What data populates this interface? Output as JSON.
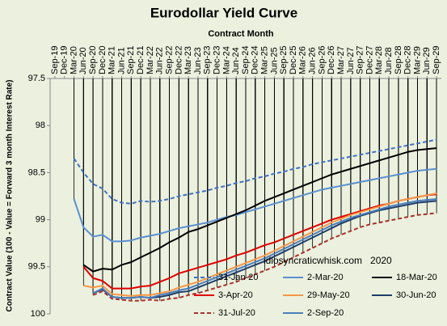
{
  "chart_data": {
    "type": "line",
    "title": "Eurodollar Yield Curve",
    "x_label": "Contract Month",
    "y_label": "Contract Value (100 - Value = Forward 3 month Interest Rate)",
    "annotation": "idiosyncraticwhisk.com   2020",
    "categories": [
      "Sep-19",
      "Dec-19",
      "Mar-20",
      "Jun-20",
      "Sep-20",
      "Dec-20",
      "Mar-21",
      "Jun-21",
      "Sep-21",
      "Dec-21",
      "Mar-22",
      "Jun-22",
      "Sep-22",
      "Dec-22",
      "Mar-23",
      "Jun-23",
      "Sep-23",
      "Dec-23",
      "Mar-24",
      "Jun-24",
      "Sep-24",
      "Dec-24",
      "Mar-25",
      "Jun-25",
      "Sep-25",
      "Dec-25",
      "Mar-26",
      "Jun-26",
      "Sep-26",
      "Dec-26",
      "Mar-27",
      "Jun-27",
      "Sep-27",
      "Dec-27",
      "Mar-28",
      "Jun-28",
      "Sep-28",
      "Dec-28",
      "Mar-29",
      "Jun-29",
      "Sep-29"
    ],
    "ylim": [
      100,
      97.5
    ],
    "yticks": [
      97.5,
      98,
      98.5,
      99,
      99.5,
      100
    ],
    "y_inverted": true,
    "category_axis_position": "top",
    "drop_lines": true,
    "grid": false,
    "legend_location": "lower right",
    "background": "#ebf1de",
    "series": [
      {
        "name": "31-Jan-20",
        "color": "#4472c4",
        "line_style": "dashed",
        "values": [
          null,
          null,
          98.35,
          98.5,
          98.62,
          98.67,
          98.78,
          98.82,
          98.83,
          98.8,
          98.81,
          98.8,
          98.78,
          98.75,
          98.73,
          98.71,
          98.69,
          98.66,
          98.64,
          98.61,
          98.59,
          98.56,
          98.54,
          98.51,
          98.49,
          98.46,
          98.44,
          98.41,
          98.39,
          98.37,
          98.35,
          98.33,
          98.31,
          98.29,
          98.27,
          98.25,
          98.23,
          98.21,
          98.19,
          98.17,
          98.15
        ]
      },
      {
        "name": "2-Mar-20",
        "color": "#5b8fd0",
        "line_style": "solid",
        "values": [
          null,
          null,
          98.78,
          99.08,
          99.18,
          99.16,
          99.23,
          99.23,
          99.22,
          99.19,
          99.17,
          99.15,
          99.12,
          99.09,
          99.07,
          99.05,
          99.03,
          99.0,
          98.97,
          98.95,
          98.92,
          98.89,
          98.86,
          98.83,
          98.8,
          98.77,
          98.74,
          98.71,
          98.68,
          98.66,
          98.64,
          98.62,
          98.6,
          98.58,
          98.56,
          98.54,
          98.52,
          98.5,
          98.48,
          98.47,
          98.46
        ]
      },
      {
        "name": "18-Mar-20",
        "color": "#000000",
        "line_style": "solid",
        "values": [
          null,
          null,
          null,
          99.48,
          99.55,
          99.52,
          99.53,
          99.48,
          99.45,
          99.4,
          99.35,
          99.3,
          99.24,
          99.19,
          99.13,
          99.1,
          99.06,
          99.02,
          98.98,
          98.94,
          98.9,
          98.85,
          98.8,
          98.76,
          98.72,
          98.68,
          98.64,
          98.6,
          98.56,
          98.52,
          98.49,
          98.46,
          98.43,
          98.4,
          98.37,
          98.34,
          98.31,
          98.28,
          98.26,
          98.25,
          98.24
        ]
      },
      {
        "name": "3-Apr-20",
        "color": "#e00000",
        "line_style": "solid",
        "values": [
          null,
          null,
          null,
          99.5,
          99.62,
          99.65,
          99.73,
          99.73,
          99.73,
          99.71,
          99.7,
          99.66,
          99.62,
          99.57,
          99.54,
          99.51,
          99.48,
          99.45,
          99.42,
          99.38,
          99.35,
          99.31,
          99.27,
          99.24,
          99.2,
          99.16,
          99.12,
          99.08,
          99.04,
          99.0,
          98.97,
          98.94,
          98.91,
          98.88,
          98.85,
          98.83,
          98.8,
          98.78,
          98.76,
          98.74,
          98.73
        ]
      },
      {
        "name": "29-May-20",
        "color": "#f79646",
        "line_style": "solid",
        "values": [
          null,
          null,
          null,
          99.7,
          99.72,
          99.7,
          99.79,
          99.8,
          99.81,
          99.8,
          99.8,
          99.78,
          99.76,
          99.72,
          99.69,
          99.66,
          99.62,
          99.58,
          99.54,
          99.5,
          99.46,
          99.42,
          99.38,
          99.33,
          99.28,
          99.23,
          99.18,
          99.13,
          99.08,
          99.03,
          98.99,
          98.95,
          98.92,
          98.89,
          98.86,
          98.83,
          98.8,
          98.78,
          98.76,
          98.74,
          98.72
        ]
      },
      {
        "name": "30-Jun-20",
        "color": "#1f3d6b",
        "line_style": "solid",
        "values": [
          null,
          null,
          null,
          null,
          99.78,
          99.74,
          99.82,
          99.83,
          99.83,
          99.82,
          99.83,
          99.82,
          99.8,
          99.77,
          99.76,
          99.72,
          99.68,
          99.64,
          99.6,
          99.56,
          99.52,
          99.48,
          99.44,
          99.39,
          99.34,
          99.29,
          99.24,
          99.19,
          99.14,
          99.09,
          99.04,
          99.0,
          98.96,
          98.93,
          98.9,
          98.88,
          98.86,
          98.84,
          98.82,
          98.81,
          98.8
        ]
      },
      {
        "name": "31-Jul-20",
        "color": "#a8322e",
        "line_style": "dashed",
        "values": [
          null,
          null,
          null,
          null,
          99.8,
          99.76,
          99.84,
          99.85,
          99.86,
          99.86,
          99.85,
          99.86,
          99.84,
          99.83,
          99.8,
          99.78,
          99.75,
          99.72,
          99.69,
          99.66,
          99.62,
          99.58,
          99.54,
          99.5,
          99.45,
          99.4,
          99.35,
          99.3,
          99.25,
          99.2,
          99.16,
          99.12,
          99.08,
          99.05,
          99.03,
          99.01,
          98.99,
          98.97,
          98.95,
          98.94,
          98.93
        ]
      },
      {
        "name": "2-Sep-20",
        "color": "#4a7ebb",
        "line_style": "solid",
        "values": [
          null,
          null,
          null,
          null,
          99.78,
          99.73,
          99.82,
          99.83,
          99.83,
          99.82,
          99.83,
          99.8,
          99.78,
          99.75,
          99.73,
          99.69,
          99.65,
          99.61,
          99.57,
          99.53,
          99.49,
          99.45,
          99.41,
          99.36,
          99.31,
          99.26,
          99.21,
          99.16,
          99.11,
          99.06,
          99.02,
          98.98,
          98.95,
          98.92,
          98.89,
          98.86,
          98.84,
          98.82,
          98.8,
          98.79,
          98.78
        ]
      }
    ]
  }
}
